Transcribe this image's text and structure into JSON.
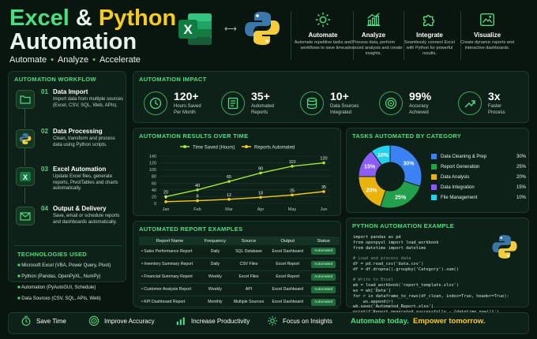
{
  "header": {
    "title_part1": "Excel",
    "title_amp": "&",
    "title_part2": "Python",
    "title_line2": "Automation",
    "subtitle": [
      "Automate",
      "Analyze",
      "Accelerate"
    ],
    "features": [
      {
        "icon": "gear-icon",
        "title": "Automate",
        "desc": "Automate repetitive tasks and workflows to save time."
      },
      {
        "icon": "chart-up-icon",
        "title": "Analyze",
        "desc": "Process data, perform advanced analysis and create insights."
      },
      {
        "icon": "puzzle-icon",
        "title": "Integrate",
        "desc": "Seamlessly connect Excel with Python for powerful results."
      },
      {
        "icon": "image-chart-icon",
        "title": "Visualize",
        "desc": "Create dynamic reports and interactive dashboards."
      }
    ]
  },
  "workflow": {
    "title": "AUTOMATION WORKFLOW",
    "steps": [
      {
        "num": "01",
        "title": "Data Import",
        "desc": "Import data from multiple sources (Excel, CSV, SQL, Web, APIs)."
      },
      {
        "num": "02",
        "title": "Data Processing",
        "desc": "Clean, transform and process data using Python scripts."
      },
      {
        "num": "03",
        "title": "Excel Automation",
        "desc": "Update Excel files, generate reports, PivotTables and charts automatically."
      },
      {
        "num": "04",
        "title": "Output & Delivery",
        "desc": "Save, email or schedule reports and dashboards automatically."
      }
    ]
  },
  "technologies": {
    "title": "TECHNOLOGIES USED",
    "items": [
      "Microsoft Excel (VBA, Power Query, Pivot)",
      "Python (Pandas, OpenPyXL, NumPy)",
      "Automation (PyAutoGUI, Schedule)",
      "Data Sources (CSV, SQL, APIs, Web)"
    ]
  },
  "impact": {
    "title": "AUTOMATION IMPACT",
    "kpis": [
      {
        "value": "120+",
        "label1": "Hours Saved",
        "label2": "Per Month"
      },
      {
        "value": "35+",
        "label1": "Automated",
        "label2": "Reports"
      },
      {
        "value": "10+",
        "label1": "Data Sources",
        "label2": "Integrated"
      },
      {
        "value": "99%",
        "label1": "Accuracy",
        "label2": "Achieved"
      },
      {
        "value": "3x",
        "label1": "Faster",
        "label2": "Process"
      }
    ]
  },
  "results": {
    "title": "AUTOMATION RESULTS OVER TIME"
  },
  "chart_data": [
    {
      "type": "line",
      "title": "AUTOMATION RESULTS OVER TIME",
      "categories": [
        "Jan",
        "Feb",
        "Mar",
        "Apr",
        "May",
        "Jun"
      ],
      "ylim": [
        0,
        140
      ],
      "yticks": [
        0,
        20,
        40,
        60,
        80,
        100,
        120,
        140
      ],
      "legend_position": "top",
      "series": [
        {
          "name": "Time Saved (Hours)",
          "color": "#a3e635",
          "values": [
            20,
            40,
            65,
            90,
            110,
            120
          ]
        },
        {
          "name": "Reports Automated",
          "color": "#facc15",
          "values": [
            5,
            8,
            12,
            18,
            25,
            35
          ]
        }
      ]
    },
    {
      "type": "pie",
      "title": "TASKS AUTOMATED BY CATEGORY",
      "categories": [
        "Data Cleaning & Prep",
        "Report Generation",
        "Data Analysis",
        "Data Integration",
        "File Management"
      ],
      "values": [
        30,
        25,
        20,
        15,
        10
      ],
      "labels": [
        "30%",
        "25%",
        "20%",
        "15%",
        "10%"
      ],
      "colors": [
        "#3b82f6",
        "#22a04b",
        "#eab308",
        "#8b5cf6",
        "#22d3ee"
      ]
    }
  ],
  "reports": {
    "title": "AUTOMATED REPORT EXAMPLES",
    "columns": [
      "Report Name",
      "Frequency",
      "Source",
      "Output",
      "Status"
    ],
    "rows": [
      [
        "Sales Performance Report",
        "Daily",
        "SQL Database",
        "Excel Dashboard",
        "Automated"
      ],
      [
        "Inventory Summary Report",
        "Daily",
        "CSV Files",
        "Excel Report",
        "Automated"
      ],
      [
        "Financial Summary Report",
        "Weekly",
        "Excel Files",
        "Excel Report",
        "Automated"
      ],
      [
        "Customer Analysis Report",
        "Weekly",
        "API",
        "Excel Dashboard",
        "Automated"
      ],
      [
        "KPI Dashboard Report",
        "Monthly",
        "Multiple Sources",
        "Excel Dashboard",
        "Automated"
      ]
    ]
  },
  "code": {
    "title": "PYTHON AUTOMATION EXAMPLE",
    "lines": [
      "import pandas as pd",
      "from openpyxl import load_workbook",
      "from datetime import datetime",
      "",
      "# Load and process data",
      "df = pd.read_csv('data.csv')",
      "df = df.dropna().groupby('Category').sum()",
      "",
      "# Write to Excel",
      "wb = load_workbook('report_template.xlsx')",
      "ws = wb['Data']",
      "for r in dataframe_to_rows(df_clean, index=True, header=True):",
      "    ws.append(r)",
      "wb.save('Automated_Report.xlsx')",
      "print(f'Report generated successfully - {datetime.now()}')"
    ]
  },
  "footer": {
    "items": [
      "Save Time",
      "Improve Accuracy",
      "Increase Productivity",
      "Focus on Insights"
    ],
    "tagline1": "Automate today.",
    "tagline2": "Empower tomorrow."
  }
}
